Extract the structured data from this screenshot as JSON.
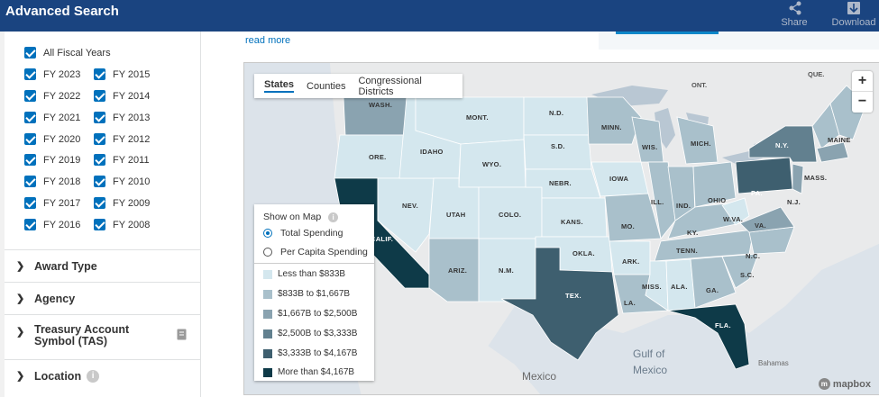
{
  "header": {
    "title": "Advanced Search",
    "share_label": "Share",
    "download_label": "Download"
  },
  "sidebar": {
    "all_fiscal_years": "All Fiscal Years",
    "fiscal_years_left": [
      "FY 2023",
      "FY 2022",
      "FY 2021",
      "FY 2020",
      "FY 2019",
      "FY 2018",
      "FY 2017",
      "FY 2016"
    ],
    "fiscal_years_right": [
      "FY 2015",
      "FY 2014",
      "FY 2013",
      "FY 2012",
      "FY 2011",
      "FY 2010",
      "FY 2009",
      "FY 2008"
    ],
    "filters": [
      "Award Type",
      "Agency",
      "Treasury Account Symbol (TAS)",
      "Location"
    ]
  },
  "main": {
    "read_more": "read more"
  },
  "map": {
    "tabs": [
      "States",
      "Counties",
      "Congressional Districts"
    ],
    "active_tab": "States",
    "show_on_map": "Show on Map",
    "radios": [
      "Total Spending",
      "Per Capita Spending"
    ],
    "selected_radio": "Total Spending",
    "legend": [
      {
        "label": "Less than $833B",
        "color": "#d4e7ee"
      },
      {
        "label": "$833B to $1,667B",
        "color": "#a9c0cb"
      },
      {
        "label": "$1,667B to $2,500B",
        "color": "#8aa3b0"
      },
      {
        "label": "$2,500B to $3,333B",
        "color": "#62808f"
      },
      {
        "label": "$3,333B to $4,167B",
        "color": "#3e5f6f"
      },
      {
        "label": "More than $4,167B",
        "color": "#0e3a48"
      }
    ],
    "zoom_in": "+",
    "zoom_out": "−",
    "geo_labels": [
      "Gulf of",
      "Mexico",
      "Mexico",
      "Bahamas",
      "ONT.",
      "QUE."
    ],
    "attribution": "mapbox",
    "state_labels": [
      "WASH.",
      "ORE.",
      "CALIF.",
      "NEV.",
      "IDAHO",
      "MONT.",
      "WYO.",
      "UTAH",
      "COLO.",
      "ARIZ.",
      "N.M.",
      "N.D.",
      "S.D.",
      "NEBR.",
      "KANS.",
      "OKLA.",
      "TEX.",
      "MINN.",
      "IOWA",
      "MO.",
      "ARK.",
      "LA.",
      "WIS.",
      "ILL.",
      "MICH.",
      "IND.",
      "OHIO",
      "KY.",
      "TENN.",
      "MISS.",
      "ALA.",
      "GA.",
      "FLA.",
      "S.C.",
      "N.C.",
      "VA.",
      "W.VA.",
      "PA.",
      "N.Y.",
      "MAINE",
      "MASS.",
      "N.J."
    ]
  }
}
